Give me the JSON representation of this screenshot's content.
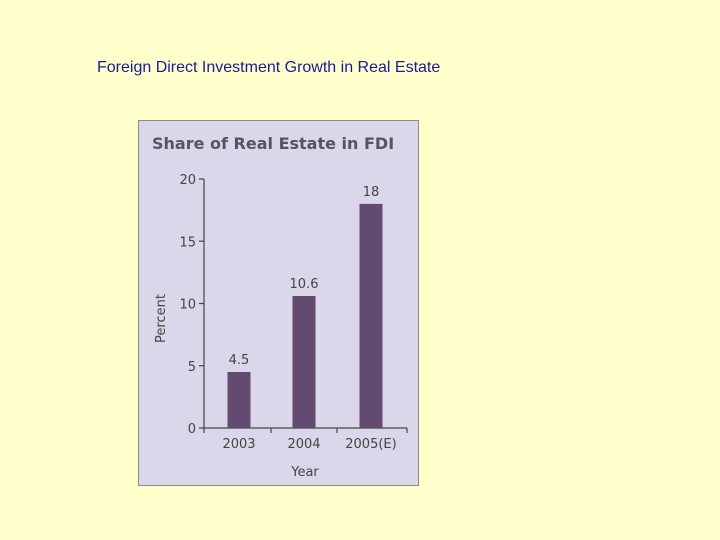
{
  "page": {
    "title": "Foreign Direct Investment Growth in Real Estate",
    "title_color": "#1a1a99",
    "background": "#ffffcc"
  },
  "chart_data": {
    "type": "bar",
    "title": "Share of Real Estate in FDI",
    "xlabel": "Year",
    "ylabel": "Percent",
    "categories": [
      "2003",
      "2004",
      "2005(E)"
    ],
    "values": [
      4.5,
      10.6,
      18
    ],
    "data_labels": [
      "4.5",
      "10.6",
      "18"
    ],
    "ylim": [
      0,
      20
    ],
    "yticks": [
      0,
      5,
      10,
      15,
      20
    ],
    "grid": false,
    "bar_color": "#634a6f",
    "panel_color": "#dbd6ea"
  }
}
